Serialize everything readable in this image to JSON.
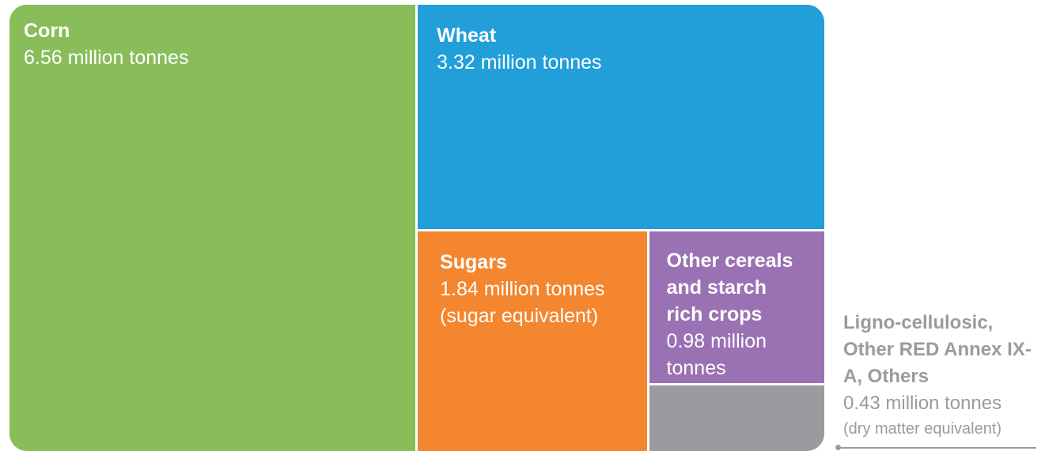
{
  "chart_data": {
    "type": "treemap",
    "categories": [
      "Corn",
      "Wheat",
      "Sugars",
      "Other cereals and starch rich crops",
      "Ligno-cellulosic, Other RED Annex IX-A, Others"
    ],
    "values": [
      6.56,
      3.32,
      1.84,
      0.98,
      0.43
    ],
    "value_labels": [
      "6.56 million tonnes",
      "3.32 million tonnes",
      "1.84 million tonnes",
      "0.98 million tonnes",
      "0.43 million tonnes"
    ],
    "annotations": [
      "(sugar equivalent)",
      "(dry matter equivalent)"
    ],
    "colors": [
      "#88bd5a",
      "#229fd9",
      "#f3862f",
      "#9a72b4",
      "#999b9e"
    ]
  }
}
